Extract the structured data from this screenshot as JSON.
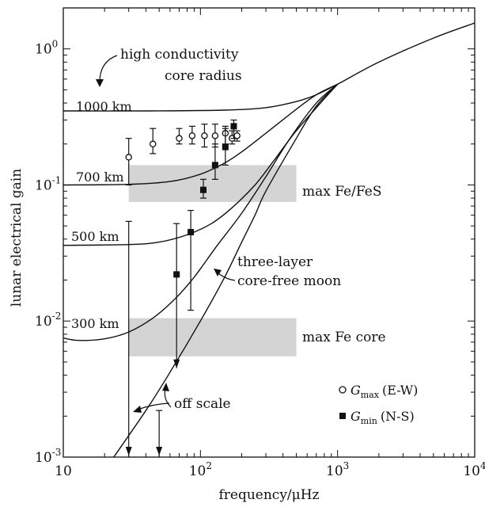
{
  "chart_data": {
    "type": "scatter",
    "xlabel": "frequency/μHz",
    "ylabel": "lunar electrical gain",
    "xscale": "log",
    "yscale": "log",
    "xlim": [
      10,
      10000
    ],
    "ylim": [
      0.001,
      2
    ],
    "x_ticks": [
      {
        "value": 10,
        "base": "10",
        "exp": ""
      },
      {
        "value": 100,
        "base": "10",
        "exp": "2"
      },
      {
        "value": 1000,
        "base": "10",
        "exp": "3"
      },
      {
        "value": 10000,
        "base": "10",
        "exp": "4"
      }
    ],
    "y_ticks": [
      {
        "value": 0.001,
        "base": "10",
        "exp": "-3"
      },
      {
        "value": 0.01,
        "base": "10",
        "exp": "-2"
      },
      {
        "value": 0.1,
        "base": "10",
        "exp": "-1"
      },
      {
        "value": 1,
        "base": "10",
        "exp": "0"
      }
    ],
    "bands": [
      {
        "label": "max Fe/FeS",
        "x_range": [
          30,
          500
        ],
        "y_range": [
          0.075,
          0.14
        ]
      },
      {
        "label": "max Fe core",
        "x_range": [
          30,
          500
        ],
        "y_range": [
          0.0055,
          0.0105
        ]
      }
    ],
    "curves": [
      {
        "name": "1000 km",
        "x": [
          10,
          40,
          150,
          300,
          500,
          700,
          1000,
          2000,
          5000,
          10000
        ],
        "y": [
          0.35,
          0.35,
          0.355,
          0.37,
          0.41,
          0.46,
          0.55,
          0.8,
          1.2,
          1.55
        ]
      },
      {
        "name": "700 km",
        "x": [
          10,
          30,
          60,
          100,
          150,
          200,
          300,
          500,
          700,
          1000
        ],
        "y": [
          0.1,
          0.101,
          0.106,
          0.12,
          0.145,
          0.175,
          0.24,
          0.36,
          0.46,
          0.55
        ]
      },
      {
        "name": "500 km",
        "x": [
          10,
          30,
          50,
          80,
          120,
          170,
          250,
          350,
          500,
          800,
          1000
        ],
        "y": [
          0.036,
          0.0365,
          0.038,
          0.043,
          0.052,
          0.068,
          0.1,
          0.155,
          0.25,
          0.43,
          0.55
        ]
      },
      {
        "name": "300 km",
        "x": [
          10,
          13,
          20,
          30,
          45,
          65,
          90,
          130,
          200,
          300,
          450,
          700,
          1000
        ],
        "y": [
          0.0075,
          0.0072,
          0.0074,
          0.0083,
          0.0105,
          0.0145,
          0.021,
          0.035,
          0.062,
          0.115,
          0.22,
          0.4,
          0.55
        ]
      },
      {
        "name": "three-layer core-free moon",
        "x": [
          20,
          40,
          60,
          100,
          150,
          200,
          250,
          300,
          500,
          700,
          1000
        ],
        "y": [
          0.0008,
          0.0022,
          0.0042,
          0.01,
          0.021,
          0.038,
          0.06,
          0.09,
          0.22,
          0.38,
          0.55
        ]
      }
    ],
    "G_max": {
      "label_main": "G",
      "label_sub": "max",
      "label_rest": "(E-W)",
      "points": [
        {
          "x": 30,
          "y": 0.16,
          "lo": 0.1,
          "hi": 0.22,
          "off_scale": false
        },
        {
          "x": 45,
          "y": 0.2,
          "lo": 0.17,
          "hi": 0.26,
          "off_scale": false
        },
        {
          "x": 70,
          "y": 0.22,
          "lo": 0.2,
          "hi": 0.26,
          "off_scale": false
        },
        {
          "x": 87,
          "y": 0.23,
          "lo": 0.2,
          "hi": 0.27,
          "off_scale": false
        },
        {
          "x": 107,
          "y": 0.23,
          "lo": 0.19,
          "hi": 0.28,
          "off_scale": false
        },
        {
          "x": 128,
          "y": 0.23,
          "lo": 0.19,
          "hi": 0.28,
          "off_scale": false
        },
        {
          "x": 152,
          "y": 0.24,
          "lo": 0.2,
          "hi": 0.27,
          "off_scale": false
        },
        {
          "x": 170,
          "y": 0.22,
          "lo": 0.2,
          "hi": 0.25,
          "off_scale": false
        },
        {
          "x": 185,
          "y": 0.23,
          "lo": 0.21,
          "hi": 0.25,
          "off_scale": false
        },
        {
          "x": 30,
          "y": null,
          "lo": 0.001,
          "hi": 0.054,
          "off_scale": true
        },
        {
          "x": 50,
          "y": null,
          "lo": 0.001,
          "hi": 0.0022,
          "off_scale": true
        }
      ]
    },
    "G_min": {
      "label_main": "G",
      "label_sub": "min",
      "label_rest": "(N-S)",
      "points": [
        {
          "x": 67,
          "y": 0.022,
          "lo": 0.0045,
          "hi": 0.052
        },
        {
          "x": 85,
          "y": 0.045,
          "lo": 0.012,
          "hi": 0.065
        },
        {
          "x": 105,
          "y": 0.092,
          "lo": 0.08,
          "hi": 0.11
        },
        {
          "x": 128,
          "y": 0.14,
          "lo": 0.11,
          "hi": 0.2
        },
        {
          "x": 152,
          "y": 0.19,
          "lo": 0.14,
          "hi": 0.26
        },
        {
          "x": 175,
          "y": 0.27,
          "lo": 0.22,
          "hi": 0.3
        }
      ]
    },
    "annotations": {
      "core_line1": "high conductivity",
      "core_line2": "core radius",
      "three_layer_line1": "three-layer",
      "three_layer_line2": "core-free moon",
      "off_scale": "off scale"
    }
  }
}
